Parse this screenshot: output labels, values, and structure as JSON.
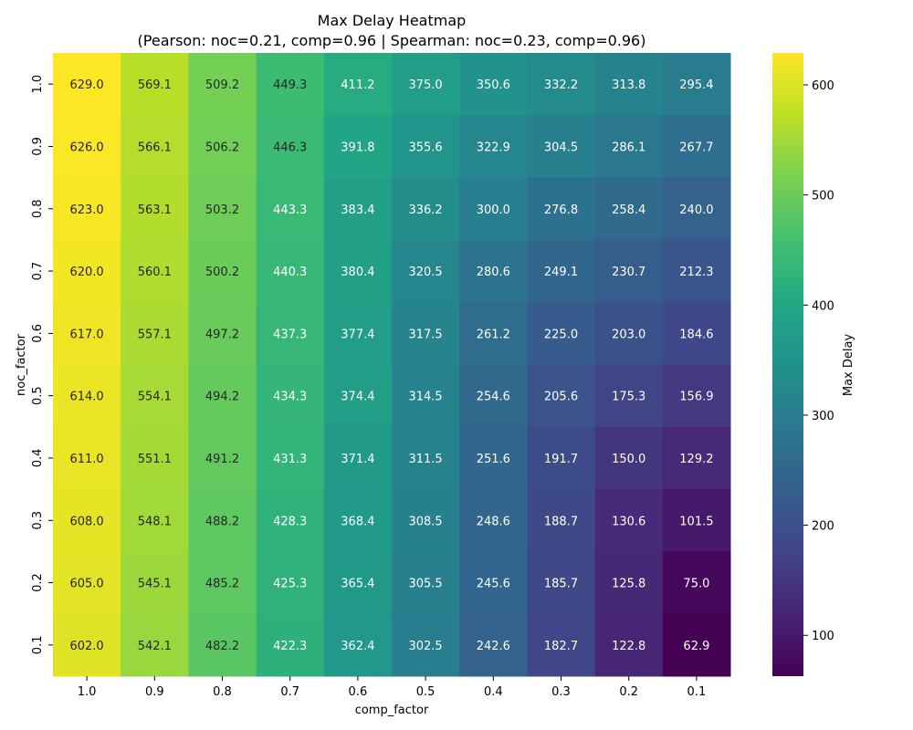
{
  "chart_data": {
    "type": "heatmap",
    "title": "Max Delay Heatmap",
    "subtitle": "(Pearson: noc=0.21, comp=0.96 | Spearman: noc=0.23, comp=0.96)",
    "xlabel": "comp_factor",
    "ylabel": "noc_factor",
    "x_categories": [
      "1.0",
      "0.9",
      "0.8",
      "0.7",
      "0.6",
      "0.5",
      "0.4",
      "0.3",
      "0.2",
      "0.1"
    ],
    "y_categories": [
      "1.0",
      "0.9",
      "0.8",
      "0.7",
      "0.6",
      "0.5",
      "0.4",
      "0.3",
      "0.2",
      "0.1"
    ],
    "values": [
      [
        629.0,
        569.1,
        509.2,
        449.3,
        411.2,
        375.0,
        350.6,
        332.2,
        313.8,
        295.4
      ],
      [
        626.0,
        566.1,
        506.2,
        446.3,
        391.8,
        355.6,
        322.9,
        304.5,
        286.1,
        267.7
      ],
      [
        623.0,
        563.1,
        503.2,
        443.3,
        383.4,
        336.2,
        300.0,
        276.8,
        258.4,
        240.0
      ],
      [
        620.0,
        560.1,
        500.2,
        440.3,
        380.4,
        320.5,
        280.6,
        249.1,
        230.7,
        212.3
      ],
      [
        617.0,
        557.1,
        497.2,
        437.3,
        377.4,
        317.5,
        261.2,
        225.0,
        203.0,
        184.6
      ],
      [
        614.0,
        554.1,
        494.2,
        434.3,
        374.4,
        314.5,
        254.6,
        205.6,
        175.3,
        156.9
      ],
      [
        611.0,
        551.1,
        491.2,
        431.3,
        371.4,
        311.5,
        251.6,
        191.7,
        150.0,
        129.2
      ],
      [
        608.0,
        548.1,
        488.2,
        428.3,
        368.4,
        308.5,
        248.6,
        188.7,
        130.6,
        101.5
      ],
      [
        605.0,
        545.1,
        485.2,
        425.3,
        365.4,
        305.5,
        245.6,
        185.7,
        125.8,
        75.0
      ],
      [
        602.0,
        542.1,
        482.2,
        422.3,
        362.4,
        302.5,
        242.6,
        182.7,
        122.8,
        62.9
      ]
    ],
    "colorbar": {
      "label": "Max Delay",
      "ticks": [
        100,
        200,
        300,
        400,
        500,
        600
      ],
      "range": [
        62.9,
        629.0
      ],
      "colormap": "viridis"
    }
  }
}
